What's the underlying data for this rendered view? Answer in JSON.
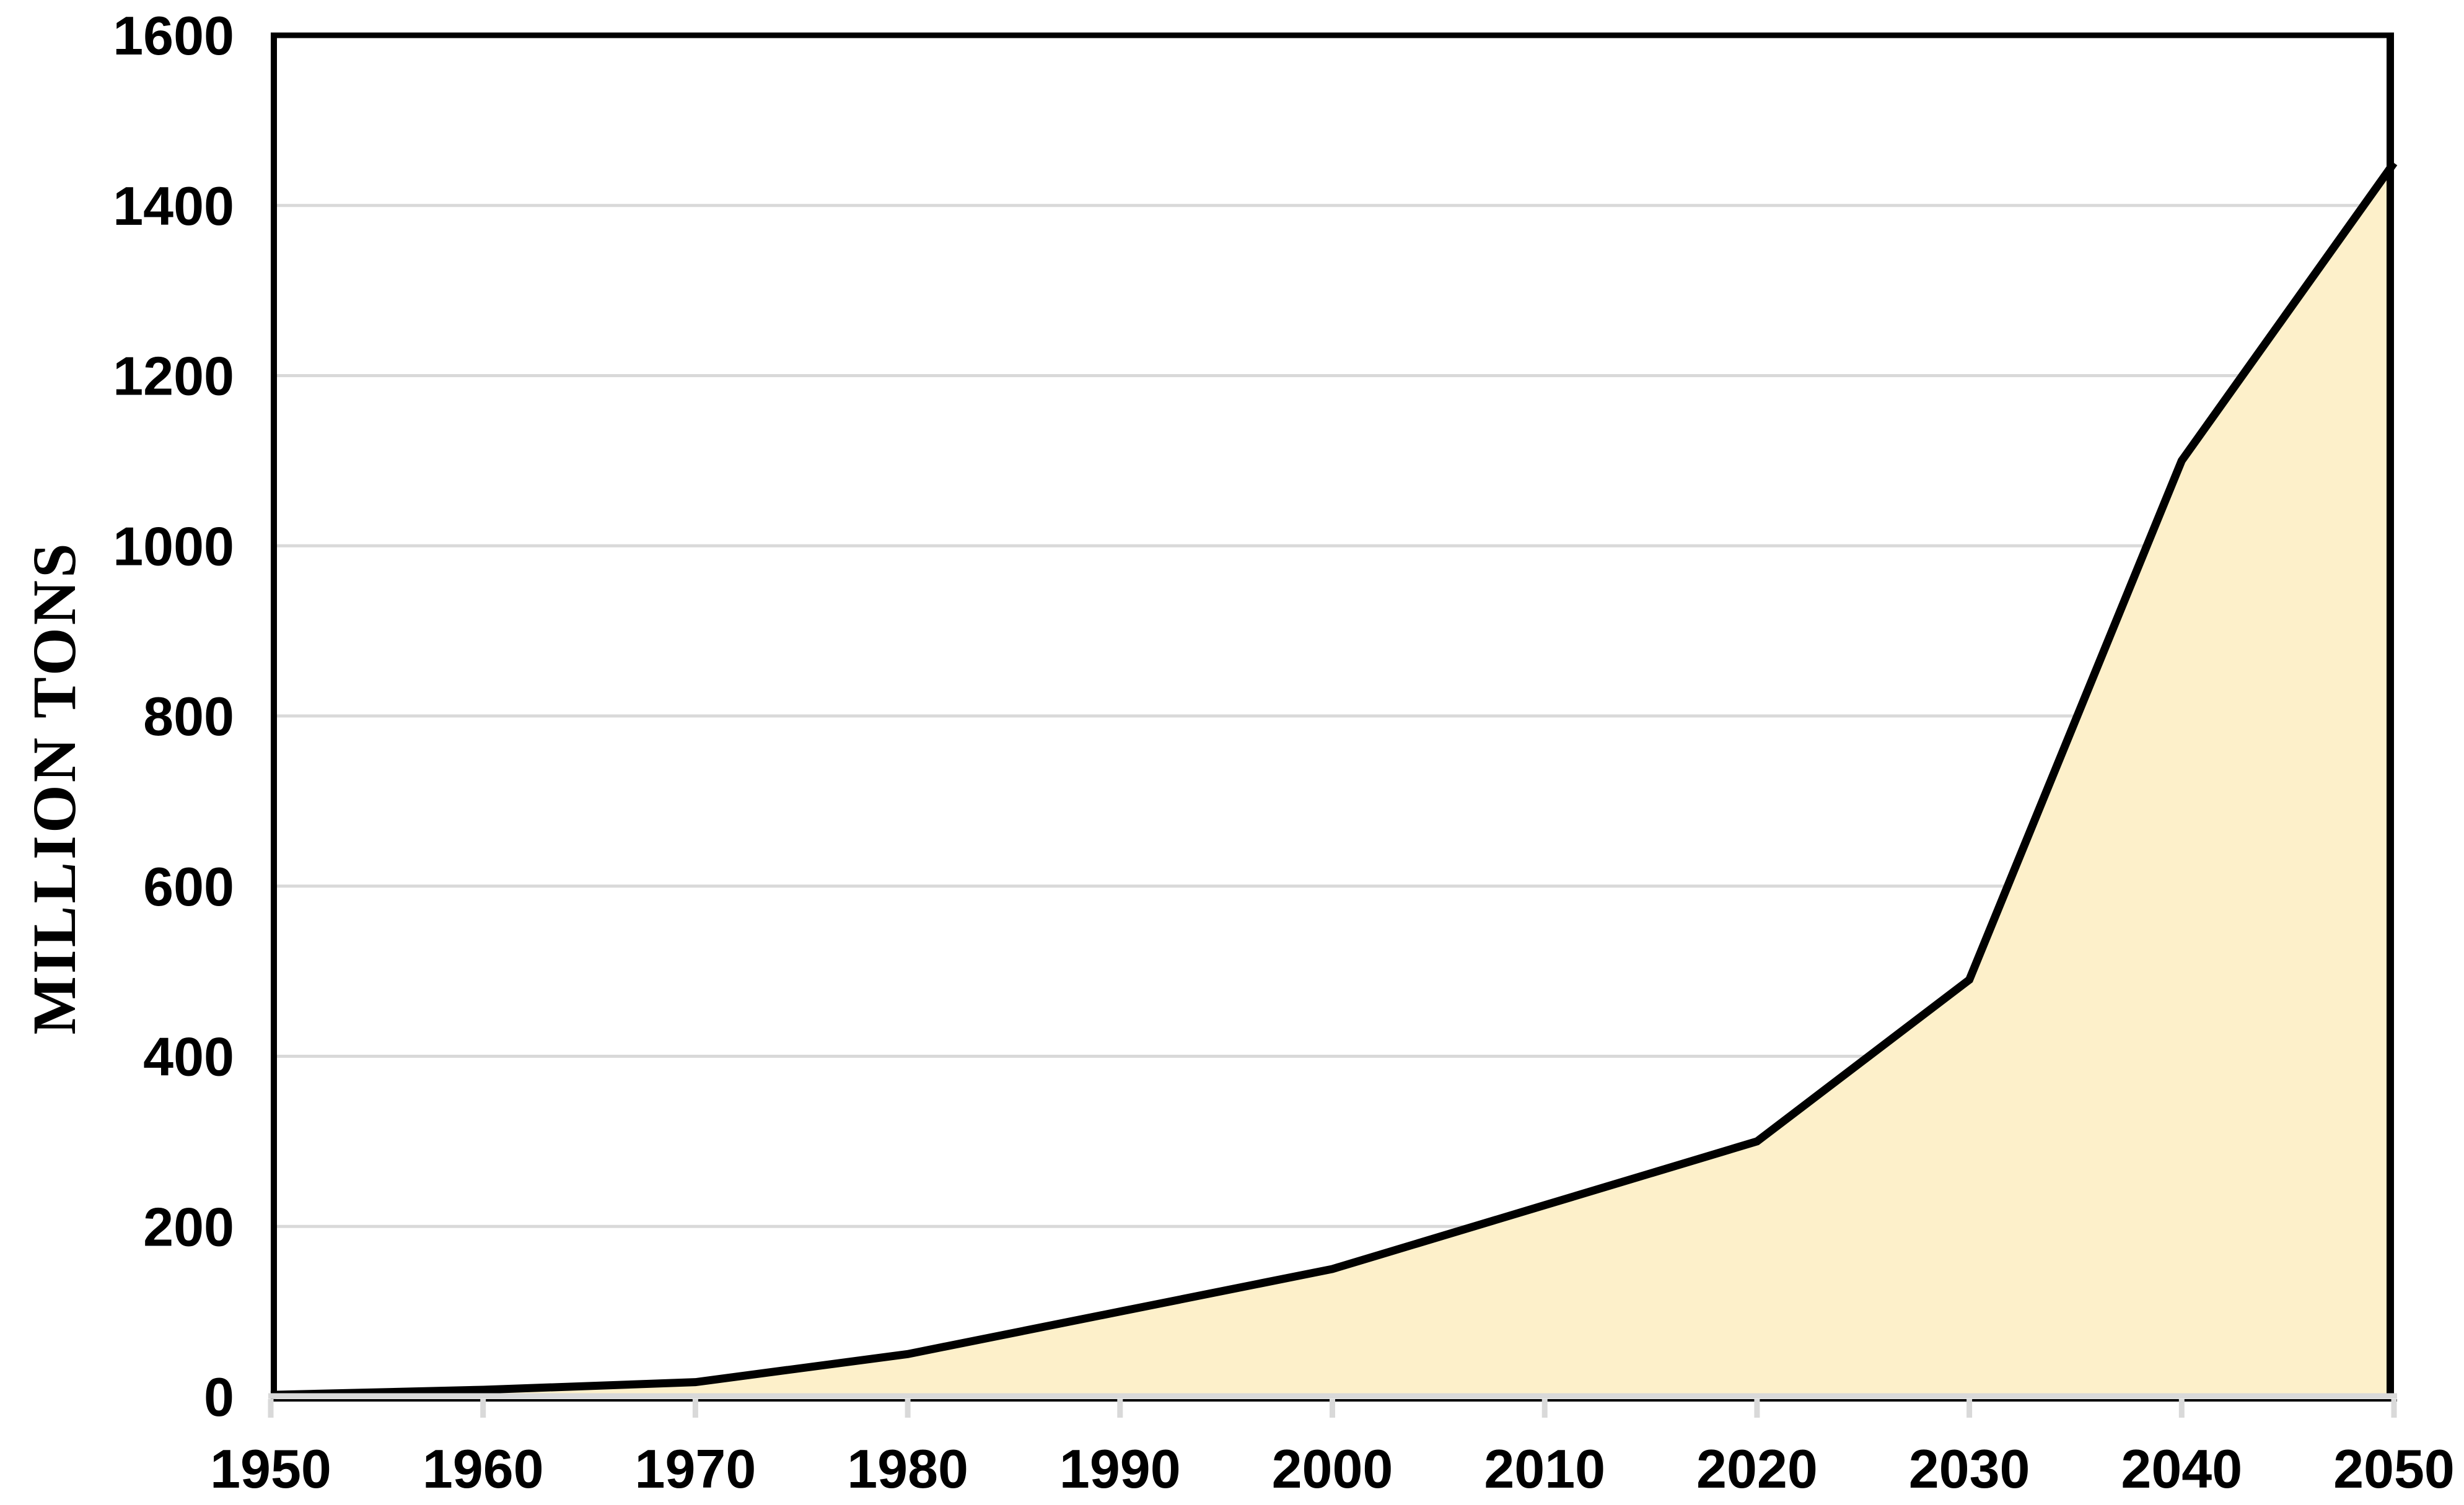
{
  "chart_data": {
    "type": "area",
    "title": "",
    "xlabel": "",
    "ylabel": "MILLION TONS",
    "categories": [
      "1950",
      "1960",
      "1970",
      "1980",
      "1990",
      "2000",
      "2010",
      "2020",
      "2030",
      "2040",
      "2050"
    ],
    "series": [
      {
        "name": "million-tons",
        "values": [
          2,
          8,
          17,
          50,
          100,
          150,
          225,
          300,
          490,
          1100,
          1450
        ]
      }
    ],
    "ylim": [
      0,
      1600
    ],
    "ytick_step": 200,
    "yticks": [
      "0",
      "200",
      "400",
      "600",
      "800",
      "1000",
      "1200",
      "1400",
      "1600"
    ],
    "grid": "horizontal",
    "legend": "none",
    "colors": {
      "area_fill": "#FDF0CA",
      "line": "#000000",
      "gridline": "#D9D9D9",
      "axis_line": "#D9D9D9",
      "axis_bottom_edge": "#000000",
      "tick_mark": "#D9D9D9",
      "plot_border": "#000000",
      "text": "#000000",
      "background": "#FFFFFF"
    }
  }
}
